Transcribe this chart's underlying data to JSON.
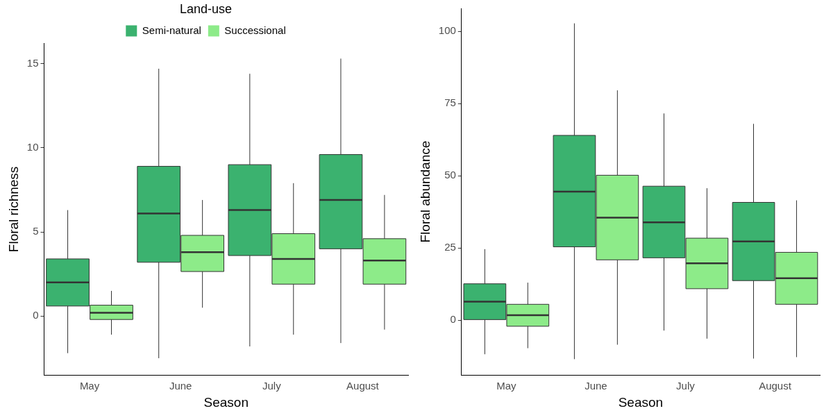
{
  "chart_data": [
    {
      "type": "box",
      "xlabel": "Season",
      "ylabel": "Floral richness",
      "legend_title": "Land-use",
      "legend": "top",
      "grid": false,
      "categories": [
        "May",
        "June",
        "July",
        "August"
      ],
      "ylim": [
        -3.5,
        16.2
      ],
      "yticks": [
        0,
        5,
        10,
        15
      ],
      "series": [
        {
          "name": "Semi-natural",
          "color": "#3bb26f",
          "boxes": [
            {
              "low": -2.2,
              "q1": 0.6,
              "median": 2.0,
              "q3": 3.4,
              "high": 6.3
            },
            {
              "low": -2.5,
              "q1": 3.2,
              "median": 6.1,
              "q3": 8.9,
              "high": 14.7
            },
            {
              "low": -1.8,
              "q1": 3.6,
              "median": 6.3,
              "q3": 9.0,
              "high": 14.4
            },
            {
              "low": -1.6,
              "q1": 4.0,
              "median": 6.9,
              "q3": 9.6,
              "high": 15.3
            }
          ]
        },
        {
          "name": "Successional",
          "color": "#8deb89",
          "boxes": [
            {
              "low": -1.1,
              "q1": -0.2,
              "median": 0.2,
              "q3": 0.65,
              "high": 1.5
            },
            {
              "low": 0.5,
              "q1": 2.65,
              "median": 3.8,
              "q3": 4.8,
              "high": 6.9
            },
            {
              "low": -1.1,
              "q1": 1.9,
              "median": 3.4,
              "q3": 4.9,
              "high": 7.9
            },
            {
              "low": -0.8,
              "q1": 1.9,
              "median": 3.3,
              "q3": 4.6,
              "high": 7.2
            }
          ]
        }
      ]
    },
    {
      "type": "box",
      "xlabel": "Season",
      "ylabel": "Floral abundance",
      "grid": false,
      "categories": [
        "May",
        "June",
        "July",
        "August"
      ],
      "ylim": [
        -19,
        108
      ],
      "yticks": [
        0,
        25,
        50,
        75,
        100
      ],
      "series": [
        {
          "color": "#3bb26f",
          "boxes": [
            {
              "low": -11.8,
              "q1": 0.2,
              "median": 6.4,
              "q3": 12.6,
              "high": 24.6
            },
            {
              "low": -13.5,
              "q1": 25.4,
              "median": 44.5,
              "q3": 64,
              "high": 102.8
            },
            {
              "low": -3.6,
              "q1": 21.6,
              "median": 33.9,
              "q3": 46.4,
              "high": 71.6
            },
            {
              "low": -13.3,
              "q1": 13.7,
              "median": 27.3,
              "q3": 40.8,
              "high": 68
            }
          ]
        },
        {
          "color": "#8deb89",
          "boxes": [
            {
              "low": -9.7,
              "q1": -2.1,
              "median": 1.7,
              "q3": 5.5,
              "high": 13
            },
            {
              "low": -8.5,
              "q1": 20.9,
              "median": 35.5,
              "q3": 50.2,
              "high": 79.6
            },
            {
              "low": -6.4,
              "q1": 10.9,
              "median": 19.7,
              "q3": 28.4,
              "high": 45.7
            },
            {
              "low": -12.8,
              "q1": 5.5,
              "median": 14.5,
              "q3": 23.5,
              "high": 41.5
            }
          ]
        }
      ]
    }
  ]
}
